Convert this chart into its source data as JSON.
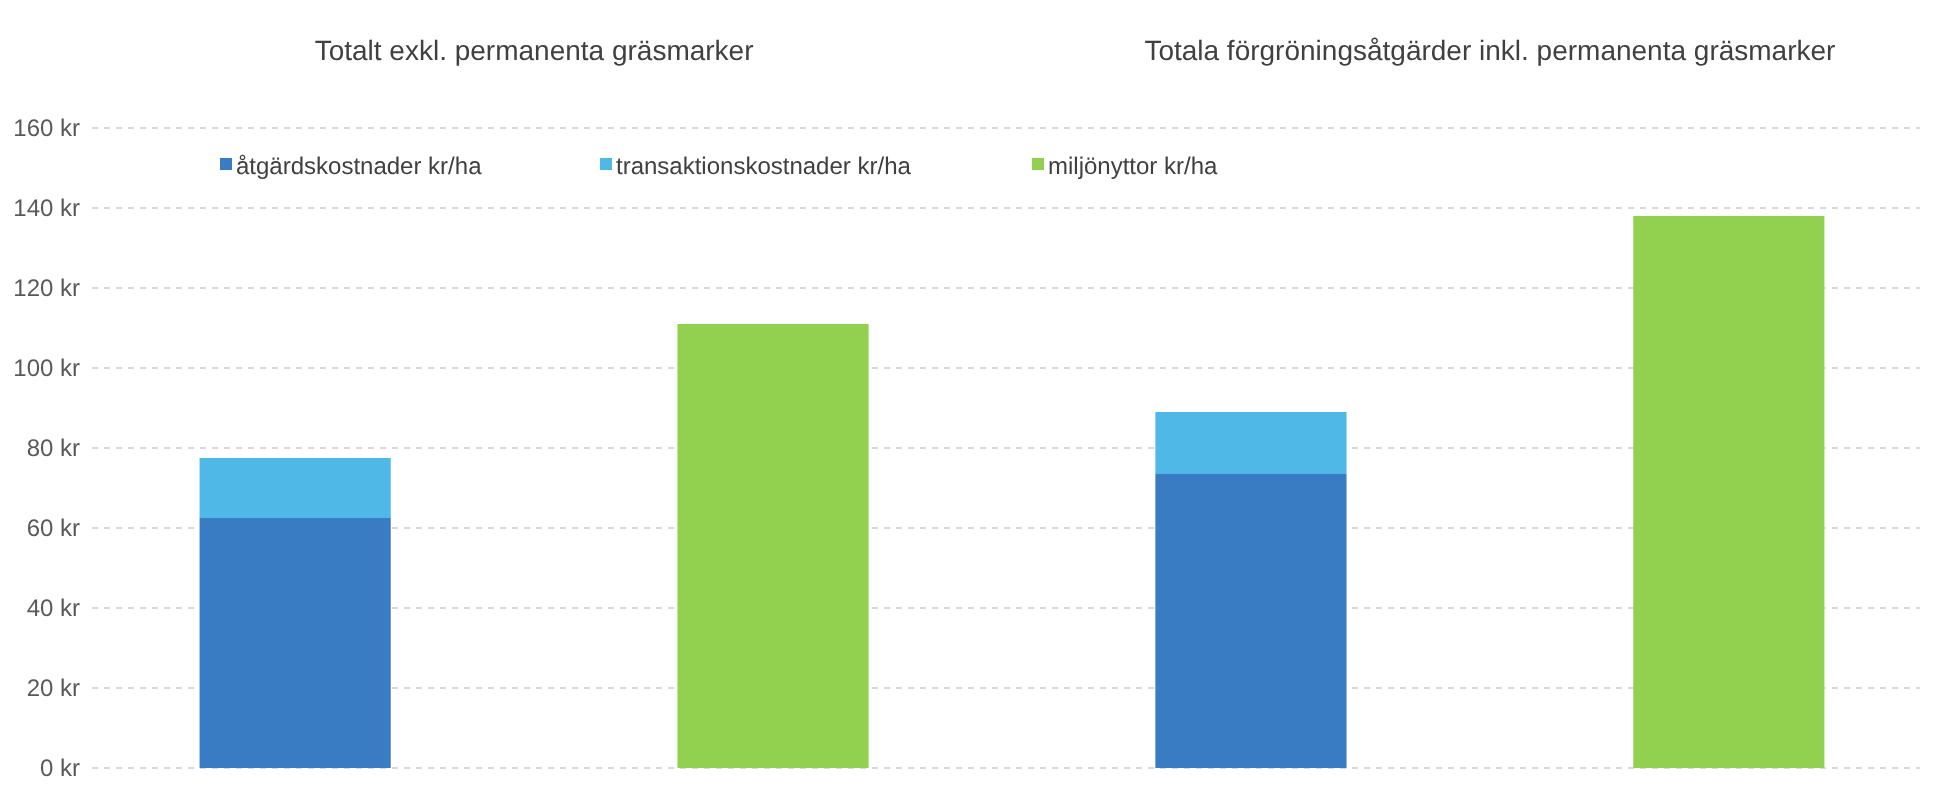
{
  "chart_data": {
    "type": "bar",
    "stacked": true,
    "categories": [
      null,
      null,
      null,
      null
    ],
    "annotations": [
      "Totalt exkl. permanenta gräsmarker",
      "Totala förgröningsåtgärder inkl. permanenta gräsmarker"
    ],
    "series": [
      {
        "name": "åtgärdskostnader kr/ha",
        "color": "#3a7cc4",
        "values": [
          62.5,
          null,
          73.5,
          null
        ]
      },
      {
        "name": "transaktionskostnader kr/ha",
        "color": "#4fb8e6",
        "values": [
          15,
          null,
          15.5,
          null
        ]
      },
      {
        "name": "miljönyttor kr/ha",
        "color": "#92d050",
        "values": [
          null,
          111,
          null,
          138
        ]
      }
    ],
    "ylim": [
      0,
      160
    ],
    "yticks": [
      {
        "value": 0,
        "label": "0 kr"
      },
      {
        "value": 20,
        "label": "20 kr"
      },
      {
        "value": 40,
        "label": "40 kr"
      },
      {
        "value": 60,
        "label": "60 kr"
      },
      {
        "value": 80,
        "label": "80 kr"
      },
      {
        "value": 100,
        "label": "100 kr"
      },
      {
        "value": 120,
        "label": "120 kr"
      },
      {
        "value": 140,
        "label": "140 kr"
      },
      {
        "value": 160,
        "label": "160 kr"
      }
    ],
    "grid": "y",
    "legend": "top"
  }
}
